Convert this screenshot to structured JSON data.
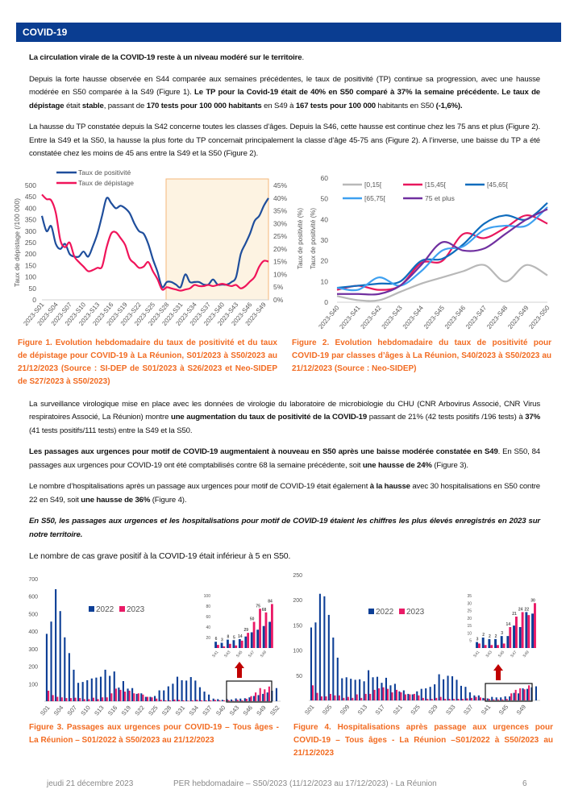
{
  "header": {
    "title": "COVID-19"
  },
  "paragraphs": [
    [
      {
        "t": "La circulation virale de la COVID-19 reste à un niveau modéré sur le territoire",
        "b": true
      },
      {
        "t": "."
      }
    ],
    [
      {
        "t": "Depuis la forte hausse observée en S44 comparée aux semaines précédentes, le taux de positivité (TP) continue sa progression, avec une hausse modérée en S50 comparée à la S49 (Figure 1). "
      },
      {
        "t": "Le TP pour la Covid-19 était de 40% en S50 comparé à 37% la semaine précédente. Le taux de dépistage",
        "b": true
      },
      {
        "t": " était "
      },
      {
        "t": "stable",
        "b": true
      },
      {
        "t": ", passant de "
      },
      {
        "t": "170 tests pour 100 000 habitants",
        "b": true
      },
      {
        "t": " en S49 à "
      },
      {
        "t": "167 tests pour 100 000",
        "b": true
      },
      {
        "t": " habitants en S50 "
      },
      {
        "t": "(-1,6%).",
        "b": true
      }
    ],
    [
      {
        "t": "La hausse du TP constatée depuis la S42 concerne toutes les classes d’âges. Depuis la S46, cette hausse est continue chez les 75 ans et plus (Figure 2). Entre la S49 et la S50, la hausse la plus forte du TP concernait principalement la classe d’âge 45-75 ans (Figure 2). A l’inverse, une baisse du TP a été constatée chez les moins de 45 ans entre la S49 et la S50 (Figure 2)."
      }
    ],
    [
      {
        "t": "La surveillance virologique mise en place avec les données de virologie du laboratoire de microbiologie du CHU (CNR Arbovirus Associé, CNR Virus respiratoires Associé, La Réunion) montre "
      },
      {
        "t": "une augmentation du taux de positivité de la COVID-19",
        "b": true
      },
      {
        "t": " passant de 21% (42 tests positifs /196 tests) à "
      },
      {
        "t": "37%",
        "b": true
      },
      {
        "t": " (41 tests positifs/111 tests) entre la S49 et la S50."
      }
    ],
    [
      {
        "t": "Les passages aux urgences pour motif de COVID-19 augmentaient à nouveau en S50 après une baisse modérée constatée en S49",
        "b": true
      },
      {
        "t": ". En S50, 84 passages aux urgences pour COVID-19 ont été comptabilisés contre 68 la semaine précédente, soit "
      },
      {
        "t": "une hausse de 24%",
        "b": true
      },
      {
        "t": " (Figure 3)."
      }
    ],
    [
      {
        "t": "Le nombre d’hospitalisations après un passage aux urgences pour motif de COVID-19 était également "
      },
      {
        "t": "à la hausse",
        "b": true
      },
      {
        "t": " avec 30 hospitalisations en S50 contre 22 en S49, soit "
      },
      {
        "t": "une hausse de 36%",
        "b": true
      },
      {
        "t": " (Figure 4)."
      }
    ],
    [
      {
        "t": "En S50, les passages aux urgences et les hospitalisations pour motif de COVID-19 étaient les chiffres les plus élevés enregistrés en 2023 sur notre territoire.",
        "b": true,
        "i": true
      }
    ],
    [
      {
        "t": "Le nombre de cas grave positif à la COVID-19 était inférieur à 5 en S50."
      }
    ]
  ],
  "captions": {
    "fig1": "Figure 1. Evolution hebdomadaire du taux de positivité et du taux de dépistage pour COVID-19 à La Réunion, S01/2023 à S50/2023 au 21/12/2023 (Source : SI-DEP de S01/2023 à S26/2023 et Neo-SIDEP de S27/2023 à S50/2023)",
    "fig2": "Figure 2. Evolution hebdomadaire du taux de positivité pour COVID-19 par classes d’âges à La Réunion, S40/2023 à S50/2023 au 21/12/2023 (Source : Neo-SIDEP)",
    "fig3": "Figure 3. Passages aux urgences pour COVID-19 – Tous âges - La Réunion – S01/2022 à S50/2023 au 21/12/2023",
    "fig4": "Figure 4. Hospitalisations après passage aux urgences pour COVID-19 – Tous âges - La Réunion –S01/2022 à S50/2023 au 21/12/2023"
  },
  "footer": {
    "date": "jeudi 21 décembre 2023",
    "title": "PER hebdomadaire – S50/2023 (11/12/2023 au 17/12/2023) - La Réunion",
    "page": "6"
  },
  "chart_data": [
    {
      "type": "line",
      "title": "Figure 1",
      "ylabel": "Taux de dépistage (/100 000)",
      "ylim": [
        0,
        500
      ],
      "y2lim": [
        0,
        45
      ],
      "y_ticks": [
        "0",
        "50",
        "100",
        "150",
        "200",
        "250",
        "300",
        "350",
        "400",
        "450",
        "500"
      ],
      "y2_ticks": [
        "0%",
        "5%",
        "10%",
        "15%",
        "20%",
        "25%",
        "30%",
        "35%",
        "40%",
        "45%"
      ],
      "x_ticks": [
        "2023-S01",
        "2023-S04",
        "2023-S07",
        "2023-S10",
        "2023-S13",
        "2023-S16",
        "2023-S19",
        "2023-S22",
        "2023-S25",
        "2023-S28",
        "2023-S31",
        "2023-S34",
        "2023-S37",
        "2023-S40",
        "2023-S43",
        "2023-S46",
        "2023-S49"
      ],
      "highlight_range": [
        "2023-S28",
        "2023-S50"
      ],
      "series": [
        {
          "name": "Taux de positivité",
          "axis": "right",
          "unit": "%",
          "color": "#1f4e9c",
          "values": [
            33,
            27,
            29,
            22,
            20,
            22,
            18,
            17,
            17,
            19,
            17,
            21,
            26,
            33,
            40,
            38,
            36,
            37,
            36,
            34,
            30,
            27,
            26,
            22,
            16,
            11,
            5,
            7,
            7,
            6,
            5,
            10,
            7,
            7,
            7,
            6,
            6,
            8,
            6,
            6,
            6,
            7,
            9,
            18,
            22,
            26,
            31,
            33,
            37,
            40
          ]
        },
        {
          "name": "Taux de dépistage",
          "axis": "left",
          "color": "#f0145a",
          "values": [
            460,
            440,
            435,
            380,
            260,
            230,
            250,
            190,
            165,
            145,
            125,
            130,
            140,
            145,
            230,
            290,
            295,
            270,
            240,
            180,
            160,
            140,
            145,
            165,
            125,
            90,
            45,
            55,
            50,
            45,
            40,
            45,
            50,
            65,
            60,
            60,
            65,
            60,
            65,
            70,
            65,
            60,
            65,
            50,
            60,
            80,
            100,
            145,
            170,
            167
          ]
        }
      ]
    },
    {
      "type": "line",
      "title": "Figure 2",
      "ylabel": "Taux de positivité (%)",
      "ylim": [
        0,
        60
      ],
      "y_ticks": [
        "0",
        "10",
        "20",
        "30",
        "40",
        "50",
        "60"
      ],
      "x_ticks": [
        "2023-S40",
        "2023-S41",
        "2023-S42",
        "2023-S43",
        "2023-S44",
        "2023-S45",
        "2023-S46",
        "2023-S47",
        "2023-S48",
        "2023-S49",
        "2023-S50"
      ],
      "series": [
        {
          "name": "[0,15[",
          "color": "#b8b8b8",
          "values": [
            3,
            1,
            1,
            5,
            9,
            12,
            15,
            18,
            10,
            18,
            13
          ]
        },
        {
          "name": "[15,45[",
          "color": "#e8175d",
          "values": [
            6,
            8,
            6,
            8,
            19,
            20,
            33,
            31,
            36,
            42,
            38
          ]
        },
        {
          "name": "[45,65[",
          "color": "#0f6cbd",
          "values": [
            7,
            8,
            9,
            10,
            20,
            21,
            28,
            38,
            42,
            40,
            48
          ]
        },
        {
          "name": "[65,75[",
          "color": "#3ea0f0",
          "values": [
            7,
            6,
            12,
            8,
            15,
            25,
            27,
            35,
            37,
            37,
            46
          ]
        },
        {
          "name": "75 et plus",
          "color": "#7030a0",
          "values": [
            4,
            4,
            4,
            8,
            18,
            29,
            25,
            26,
            33,
            40,
            45
          ]
        }
      ]
    },
    {
      "type": "bar",
      "title": "Figure 3",
      "ylim": [
        0,
        700
      ],
      "y_ticks": [
        "100",
        "200",
        "300",
        "400",
        "500",
        "600",
        "700"
      ],
      "x_ticks": [
        "S01",
        "S04",
        "S07",
        "S10",
        "S13",
        "S16",
        "S19",
        "S22",
        "S25",
        "S28",
        "S31",
        "S34",
        "S37",
        "S40",
        "S43",
        "S46",
        "S49",
        "S52"
      ],
      "series": [
        {
          "name": "2022",
          "color": "#0d3f96",
          "values": [
            385,
            455,
            640,
            515,
            365,
            275,
            180,
            105,
            110,
            120,
            130,
            135,
            140,
            180,
            145,
            170,
            78,
            115,
            72,
            75,
            42,
            45,
            25,
            25,
            30,
            62,
            62,
            85,
            100,
            140,
            120,
            118,
            138,
            118,
            80,
            55,
            38,
            15,
            12,
            8,
            12,
            10,
            16,
            15,
            17,
            22,
            30,
            35,
            42,
            50,
            60,
            75
          ]
        },
        {
          "name": "2023",
          "color": "#ea1a66",
          "values": [
            60,
            35,
            25,
            22,
            18,
            18,
            20,
            18,
            12,
            12,
            20,
            12,
            22,
            22,
            45,
            72,
            65,
            55,
            60,
            45,
            45,
            38,
            25,
            22,
            15,
            8,
            5,
            5,
            10,
            8,
            5,
            3,
            5,
            8,
            5,
            5,
            5,
            8,
            5,
            5,
            6,
            3,
            8,
            5,
            14,
            29,
            50,
            75,
            68,
            84
          ]
        }
      ],
      "inset": {
        "ylim": [
          0,
          100
        ],
        "y_ticks": [
          "20",
          "40",
          "60",
          "80",
          "100"
        ],
        "x_ticks": [
          "S41",
          "S43",
          "S45",
          "S47",
          "S49"
        ],
        "series_2022": [
          12,
          10,
          16,
          15,
          17,
          22,
          30,
          35,
          42,
          50
        ],
        "series_2023": [
          6,
          3,
          8,
          5,
          14,
          29,
          50,
          75,
          68,
          84
        ],
        "labels": [
          "6",
          "3",
          "8",
          "5",
          "14",
          "29",
          "50",
          "75",
          "68",
          "84"
        ]
      }
    },
    {
      "type": "bar",
      "title": "Figure 4",
      "ylim": [
        0,
        250
      ],
      "y_ticks": [
        "50",
        "100",
        "150",
        "200",
        "250"
      ],
      "x_ticks": [
        "S01",
        "S05",
        "S09",
        "S13",
        "S17",
        "S21",
        "S25",
        "S29",
        "S33",
        "S37",
        "S41",
        "S45",
        "S49"
      ],
      "series": [
        {
          "name": "2022",
          "color": "#0d3f96",
          "values": [
            145,
            155,
            212,
            207,
            170,
            125,
            85,
            44,
            46,
            43,
            41,
            42,
            38,
            60,
            46,
            47,
            35,
            45,
            30,
            33,
            18,
            20,
            13,
            12,
            18,
            23,
            24,
            27,
            32,
            52,
            42,
            49,
            48,
            41,
            29,
            27,
            16,
            10,
            10,
            5,
            4,
            7,
            6,
            6,
            8,
            8,
            15,
            14,
            24,
            23,
            26,
            28
          ]
        },
        {
          "name": "2023",
          "color": "#ea1a66",
          "values": [
            30,
            15,
            8,
            8,
            13,
            10,
            10,
            5,
            7,
            5,
            12,
            5,
            13,
            13,
            21,
            24,
            26,
            23,
            16,
            21,
            16,
            12,
            12,
            13,
            10,
            5,
            3,
            3,
            5,
            7,
            3,
            3,
            3,
            3,
            3,
            4,
            5,
            7,
            6,
            4,
            3,
            2,
            2,
            2,
            3,
            14,
            21,
            24,
            22,
            30
          ]
        }
      ],
      "inset": {
        "ylim": [
          0,
          35
        ],
        "y_ticks": [
          "5",
          "10",
          "15",
          "20",
          "25",
          "30",
          "35"
        ],
        "x_ticks": [
          "S41",
          "S43",
          "S45",
          "S47",
          "S49"
        ],
        "series_2022": [
          4,
          7,
          6,
          6,
          8,
          8,
          15,
          14,
          24,
          23
        ],
        "series_2023": [
          3,
          2,
          2,
          2,
          3,
          14,
          21,
          24,
          22,
          30
        ],
        "labels": [
          "3",
          "2",
          "2",
          "2",
          "3",
          "14",
          "21",
          "24",
          "22",
          "30"
        ]
      }
    }
  ]
}
